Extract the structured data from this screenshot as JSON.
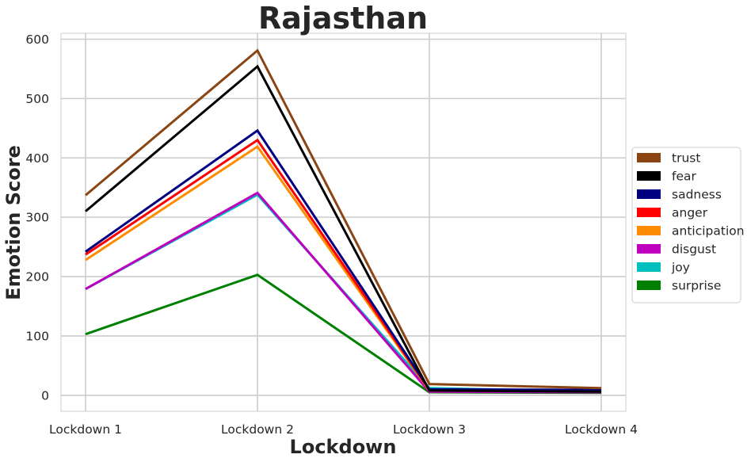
{
  "chart_data": {
    "type": "line",
    "title": "Rajasthan",
    "xlabel": "Lockdown",
    "ylabel": "Emotion Score",
    "categories": [
      "Lockdown 1",
      "Lockdown 2",
      "Lockdown 3",
      "Lockdown 4"
    ],
    "yticks": [
      0,
      100,
      200,
      300,
      400,
      500,
      600
    ],
    "ylim": [
      -27,
      610
    ],
    "grid": true,
    "legend_position": "center-right outside",
    "series": [
      {
        "name": "trust",
        "color": "#8B4513",
        "values": [
          337,
          581,
          19,
          12
        ]
      },
      {
        "name": "fear",
        "color": "#000000",
        "values": [
          310,
          554,
          8,
          6
        ]
      },
      {
        "name": "sadness",
        "color": "#000080",
        "values": [
          242,
          446,
          10,
          9
        ]
      },
      {
        "name": "anger",
        "color": "#FF0000",
        "values": [
          237,
          430,
          9,
          8
        ]
      },
      {
        "name": "anticipation",
        "color": "#FF8C00",
        "values": [
          228,
          419,
          8,
          7
        ]
      },
      {
        "name": "disgust",
        "color": "#BF00BF",
        "values": [
          179,
          341,
          6,
          5
        ]
      },
      {
        "name": "joy",
        "color": "#00BFBF",
        "values": [
          179,
          338,
          12,
          6
        ]
      },
      {
        "name": "surprise",
        "color": "#008000",
        "values": [
          103,
          203,
          5,
          4
        ]
      }
    ]
  }
}
